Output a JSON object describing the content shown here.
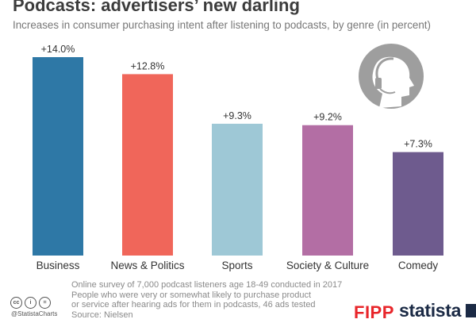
{
  "header": {
    "title": "Podcasts: advertisers’ new darling",
    "subtitle": "Increases in consumer purchasing intent after listening to podcasts, by genre (in percent)"
  },
  "chart_data": {
    "type": "bar",
    "title": "Podcasts: advertisers’ new darling",
    "subtitle": "Increases in consumer purchasing intent after listening to podcasts, by genre (in percent)",
    "categories": [
      "Business",
      "News & Politics",
      "Sports",
      "Society & Culture",
      "Comedy"
    ],
    "values": [
      14.0,
      12.8,
      9.3,
      9.2,
      7.3
    ],
    "data_labels": [
      "+14.0%",
      "+12.8%",
      "+9.3%",
      "+9.2%",
      "+7.3%"
    ],
    "colors": [
      "#2e78a6",
      "#f0665a",
      "#9ec8d6",
      "#b36ea4",
      "#6e5b8e"
    ],
    "ylim": [
      0,
      14.0
    ],
    "grid": false,
    "legend": "none"
  },
  "footer": {
    "note_lines": [
      "Online survey of 7,000 podcast listeners age 18-49 conducted in 2017",
      "People who were very or somewhat likely to purchase product",
      "or service after hearing ads for them in podcasts, 46 ads tested"
    ],
    "source": "Source: Nielsen",
    "handle": "@StatistaCharts",
    "cc_icons": [
      "cc-icon",
      "by-icon",
      "nd-icon"
    ],
    "fipp_logo": "FIPP",
    "statista_logo": "statista"
  }
}
